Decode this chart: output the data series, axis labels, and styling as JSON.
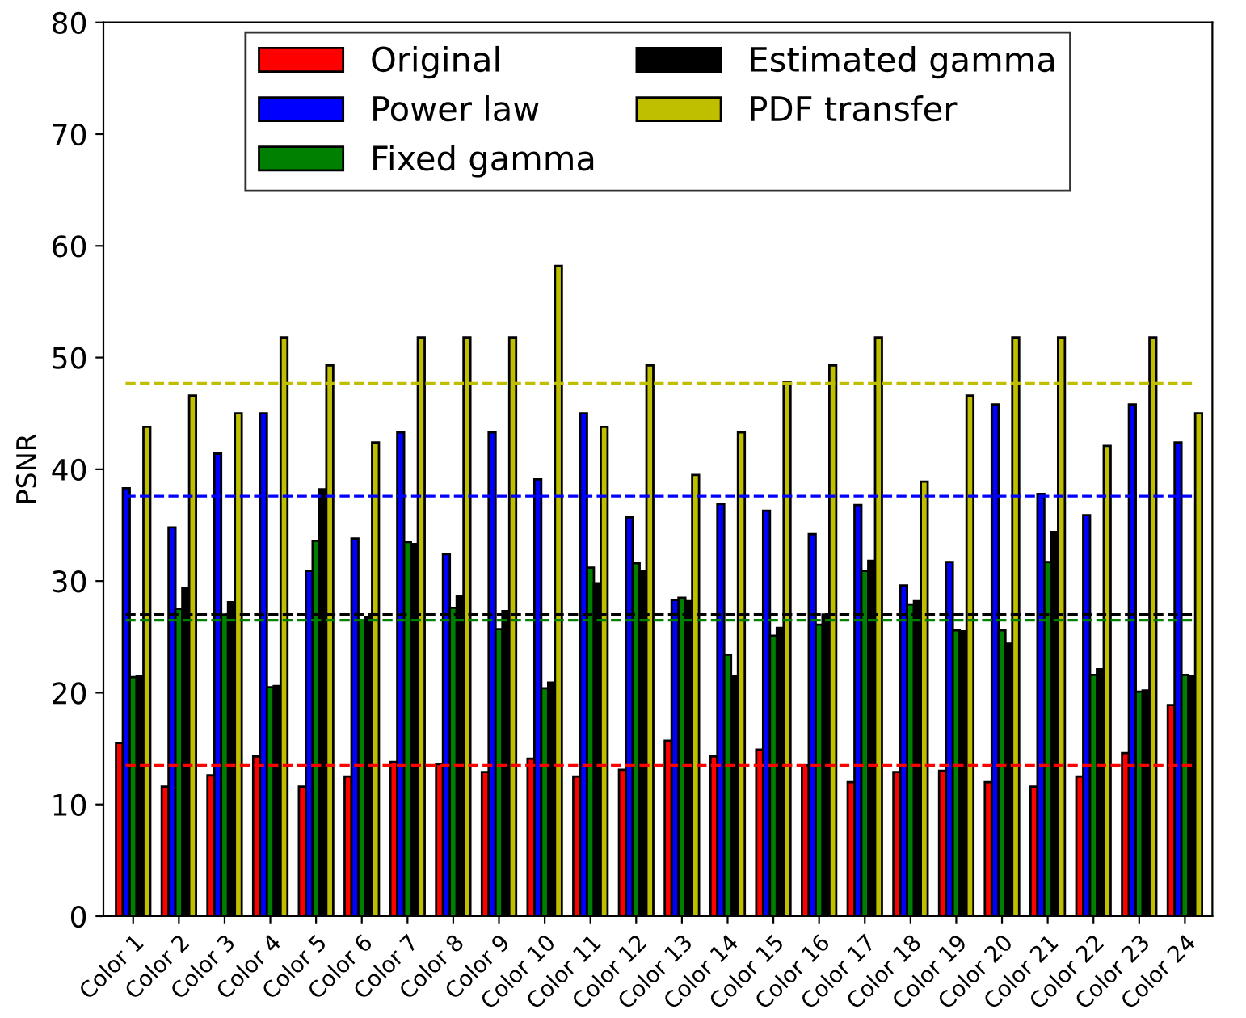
{
  "chart_data": {
    "type": "bar",
    "ylabel": "PSNR",
    "categories": [
      "Color 1",
      "Color 2",
      "Color 3",
      "Color 4",
      "Color 5",
      "Color 6",
      "Color 7",
      "Color 8",
      "Color 9",
      "Color 10",
      "Color 11",
      "Color 12",
      "Color 13",
      "Color 14",
      "Color 15",
      "Color 16",
      "Color 17",
      "Color 18",
      "Color 19",
      "Color 20",
      "Color 21",
      "Color 22",
      "Color 23",
      "Color 24"
    ],
    "series": [
      {
        "name": "Original",
        "color": "#ff0000",
        "values": [
          15.5,
          11.6,
          12.6,
          14.3,
          11.6,
          12.5,
          13.8,
          13.6,
          12.9,
          14.1,
          12.5,
          13.1,
          15.7,
          14.3,
          14.9,
          13.5,
          12.0,
          12.9,
          13.0,
          12.0,
          11.6,
          12.5,
          14.6,
          18.9
        ]
      },
      {
        "name": "Power law",
        "color": "#0000ff",
        "values": [
          38.3,
          34.8,
          41.4,
          45.0,
          30.9,
          33.8,
          43.3,
          32.4,
          43.3,
          39.1,
          45.0,
          35.7,
          28.3,
          36.9,
          36.3,
          34.2,
          36.8,
          29.6,
          31.7,
          45.8,
          37.8,
          35.9,
          45.8,
          42.4
        ]
      },
      {
        "name": "Fixed gamma",
        "color": "#008000",
        "values": [
          21.4,
          27.5,
          27.0,
          20.5,
          33.6,
          26.5,
          33.5,
          27.6,
          25.7,
          20.4,
          31.2,
          31.6,
          28.5,
          23.4,
          25.1,
          26.1,
          30.9,
          27.9,
          25.6,
          25.6,
          31.7,
          21.6,
          20.1,
          21.6
        ]
      },
      {
        "name": "Estimated gamma",
        "color": "#000000",
        "values": [
          21.5,
          29.4,
          28.1,
          20.6,
          38.2,
          26.8,
          33.3,
          28.6,
          27.3,
          20.9,
          29.8,
          30.9,
          28.2,
          21.5,
          25.8,
          27.0,
          31.8,
          28.2,
          25.5,
          24.4,
          34.4,
          22.1,
          20.2,
          21.5
        ]
      },
      {
        "name": "PDF transfer",
        "color": "#bfbf00",
        "values": [
          43.8,
          46.6,
          45.0,
          51.8,
          49.3,
          42.4,
          51.8,
          51.8,
          51.8,
          58.2,
          43.8,
          49.3,
          39.5,
          43.3,
          47.8,
          49.3,
          51.8,
          38.9,
          46.6,
          51.8,
          51.8,
          42.1,
          51.8,
          45.0
        ]
      }
    ],
    "ref_lines": [
      {
        "axis": "y",
        "value": 13.5,
        "color": "#ff0000",
        "line_style": "dashed"
      },
      {
        "axis": "y",
        "value": 37.6,
        "color": "#0000ff",
        "line_style": "dashed"
      },
      {
        "axis": "y",
        "value": 26.5,
        "color": "#008000",
        "line_style": "dashed"
      },
      {
        "axis": "y",
        "value": 27.0,
        "color": "#000000",
        "line_style": "dashed"
      },
      {
        "axis": "y",
        "value": 47.7,
        "color": "#bfbf00",
        "line_style": "dashed"
      }
    ],
    "ylim": [
      0,
      80
    ],
    "yticks": [
      0,
      10,
      20,
      30,
      40,
      50,
      60,
      70,
      80
    ],
    "legend": "top",
    "grid": false
  }
}
